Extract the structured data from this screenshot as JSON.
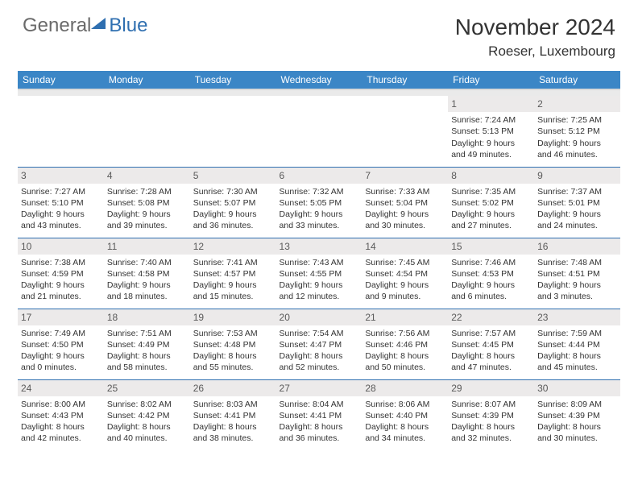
{
  "logo": {
    "part1": "General",
    "part2": "Blue"
  },
  "title": "November 2024",
  "location": "Roeser, Luxembourg",
  "colors": {
    "header_bg": "#3b86c6",
    "rule": "#2f6fb0",
    "daynum_bg": "#eceaea",
    "text": "#333333",
    "logo_gray": "#6a6a6a",
    "logo_blue": "#2f6fb0"
  },
  "weekdays": [
    "Sunday",
    "Monday",
    "Tuesday",
    "Wednesday",
    "Thursday",
    "Friday",
    "Saturday"
  ],
  "weeks": [
    [
      {
        "day": "",
        "lines": []
      },
      {
        "day": "",
        "lines": []
      },
      {
        "day": "",
        "lines": []
      },
      {
        "day": "",
        "lines": []
      },
      {
        "day": "",
        "lines": []
      },
      {
        "day": "1",
        "lines": [
          "Sunrise: 7:24 AM",
          "Sunset: 5:13 PM",
          "Daylight: 9 hours and 49 minutes."
        ]
      },
      {
        "day": "2",
        "lines": [
          "Sunrise: 7:25 AM",
          "Sunset: 5:12 PM",
          "Daylight: 9 hours and 46 minutes."
        ]
      }
    ],
    [
      {
        "day": "3",
        "lines": [
          "Sunrise: 7:27 AM",
          "Sunset: 5:10 PM",
          "Daylight: 9 hours and 43 minutes."
        ]
      },
      {
        "day": "4",
        "lines": [
          "Sunrise: 7:28 AM",
          "Sunset: 5:08 PM",
          "Daylight: 9 hours and 39 minutes."
        ]
      },
      {
        "day": "5",
        "lines": [
          "Sunrise: 7:30 AM",
          "Sunset: 5:07 PM",
          "Daylight: 9 hours and 36 minutes."
        ]
      },
      {
        "day": "6",
        "lines": [
          "Sunrise: 7:32 AM",
          "Sunset: 5:05 PM",
          "Daylight: 9 hours and 33 minutes."
        ]
      },
      {
        "day": "7",
        "lines": [
          "Sunrise: 7:33 AM",
          "Sunset: 5:04 PM",
          "Daylight: 9 hours and 30 minutes."
        ]
      },
      {
        "day": "8",
        "lines": [
          "Sunrise: 7:35 AM",
          "Sunset: 5:02 PM",
          "Daylight: 9 hours and 27 minutes."
        ]
      },
      {
        "day": "9",
        "lines": [
          "Sunrise: 7:37 AM",
          "Sunset: 5:01 PM",
          "Daylight: 9 hours and 24 minutes."
        ]
      }
    ],
    [
      {
        "day": "10",
        "lines": [
          "Sunrise: 7:38 AM",
          "Sunset: 4:59 PM",
          "Daylight: 9 hours and 21 minutes."
        ]
      },
      {
        "day": "11",
        "lines": [
          "Sunrise: 7:40 AM",
          "Sunset: 4:58 PM",
          "Daylight: 9 hours and 18 minutes."
        ]
      },
      {
        "day": "12",
        "lines": [
          "Sunrise: 7:41 AM",
          "Sunset: 4:57 PM",
          "Daylight: 9 hours and 15 minutes."
        ]
      },
      {
        "day": "13",
        "lines": [
          "Sunrise: 7:43 AM",
          "Sunset: 4:55 PM",
          "Daylight: 9 hours and 12 minutes."
        ]
      },
      {
        "day": "14",
        "lines": [
          "Sunrise: 7:45 AM",
          "Sunset: 4:54 PM",
          "Daylight: 9 hours and 9 minutes."
        ]
      },
      {
        "day": "15",
        "lines": [
          "Sunrise: 7:46 AM",
          "Sunset: 4:53 PM",
          "Daylight: 9 hours and 6 minutes."
        ]
      },
      {
        "day": "16",
        "lines": [
          "Sunrise: 7:48 AM",
          "Sunset: 4:51 PM",
          "Daylight: 9 hours and 3 minutes."
        ]
      }
    ],
    [
      {
        "day": "17",
        "lines": [
          "Sunrise: 7:49 AM",
          "Sunset: 4:50 PM",
          "Daylight: 9 hours and 0 minutes."
        ]
      },
      {
        "day": "18",
        "lines": [
          "Sunrise: 7:51 AM",
          "Sunset: 4:49 PM",
          "Daylight: 8 hours and 58 minutes."
        ]
      },
      {
        "day": "19",
        "lines": [
          "Sunrise: 7:53 AM",
          "Sunset: 4:48 PM",
          "Daylight: 8 hours and 55 minutes."
        ]
      },
      {
        "day": "20",
        "lines": [
          "Sunrise: 7:54 AM",
          "Sunset: 4:47 PM",
          "Daylight: 8 hours and 52 minutes."
        ]
      },
      {
        "day": "21",
        "lines": [
          "Sunrise: 7:56 AM",
          "Sunset: 4:46 PM",
          "Daylight: 8 hours and 50 minutes."
        ]
      },
      {
        "day": "22",
        "lines": [
          "Sunrise: 7:57 AM",
          "Sunset: 4:45 PM",
          "Daylight: 8 hours and 47 minutes."
        ]
      },
      {
        "day": "23",
        "lines": [
          "Sunrise: 7:59 AM",
          "Sunset: 4:44 PM",
          "Daylight: 8 hours and 45 minutes."
        ]
      }
    ],
    [
      {
        "day": "24",
        "lines": [
          "Sunrise: 8:00 AM",
          "Sunset: 4:43 PM",
          "Daylight: 8 hours and 42 minutes."
        ]
      },
      {
        "day": "25",
        "lines": [
          "Sunrise: 8:02 AM",
          "Sunset: 4:42 PM",
          "Daylight: 8 hours and 40 minutes."
        ]
      },
      {
        "day": "26",
        "lines": [
          "Sunrise: 8:03 AM",
          "Sunset: 4:41 PM",
          "Daylight: 8 hours and 38 minutes."
        ]
      },
      {
        "day": "27",
        "lines": [
          "Sunrise: 8:04 AM",
          "Sunset: 4:41 PM",
          "Daylight: 8 hours and 36 minutes."
        ]
      },
      {
        "day": "28",
        "lines": [
          "Sunrise: 8:06 AM",
          "Sunset: 4:40 PM",
          "Daylight: 8 hours and 34 minutes."
        ]
      },
      {
        "day": "29",
        "lines": [
          "Sunrise: 8:07 AM",
          "Sunset: 4:39 PM",
          "Daylight: 8 hours and 32 minutes."
        ]
      },
      {
        "day": "30",
        "lines": [
          "Sunrise: 8:09 AM",
          "Sunset: 4:39 PM",
          "Daylight: 8 hours and 30 minutes."
        ]
      }
    ]
  ]
}
